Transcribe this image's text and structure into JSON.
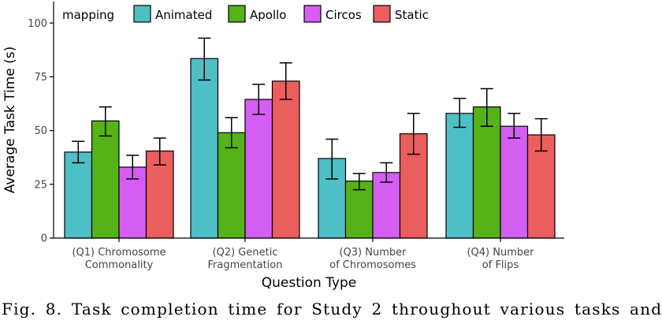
{
  "chart_data": {
    "type": "bar",
    "categories": [
      "(Q1) Chromosome\nCommonality",
      "(Q2) Genetic\nFragmentation",
      "(Q3) Number\nof Chromosomes",
      "(Q4) Number\nof Flips"
    ],
    "series": [
      {
        "name": "Animated",
        "color": "#4FBFC6",
        "values": [
          40,
          83.5,
          37,
          58
        ],
        "err_low": [
          35,
          73.5,
          27.5,
          51.5
        ],
        "err_high": [
          45,
          93,
          46,
          65
        ]
      },
      {
        "name": "Apollo",
        "color": "#55B218",
        "values": [
          54.5,
          49,
          26.5,
          61
        ],
        "err_low": [
          47.5,
          42,
          22.5,
          52
        ],
        "err_high": [
          61,
          56,
          30,
          69.5
        ]
      },
      {
        "name": "Circos",
        "color": "#D55EF2",
        "values": [
          33,
          64.5,
          30.5,
          52
        ],
        "err_low": [
          27.5,
          57.5,
          26,
          46.5
        ],
        "err_high": [
          38.5,
          71.5,
          35,
          58
        ]
      },
      {
        "name": "Static",
        "color": "#EB5E5E",
        "values": [
          40.5,
          73,
          48.5,
          48
        ],
        "err_low": [
          34,
          64.5,
          39,
          40.5
        ],
        "err_high": [
          46.5,
          81.5,
          58,
          55.5
        ]
      }
    ],
    "legend_title": "mapping",
    "xlabel": "Question Type",
    "ylabel": "Average Task Time (s)",
    "ylim": [
      0,
      110
    ],
    "yticks": [
      0,
      25,
      50,
      75,
      100
    ],
    "grid": false,
    "legend_position": "top-left"
  },
  "caption": "Fig. 8. Task completion time for Study 2 throughout various tasks and"
}
